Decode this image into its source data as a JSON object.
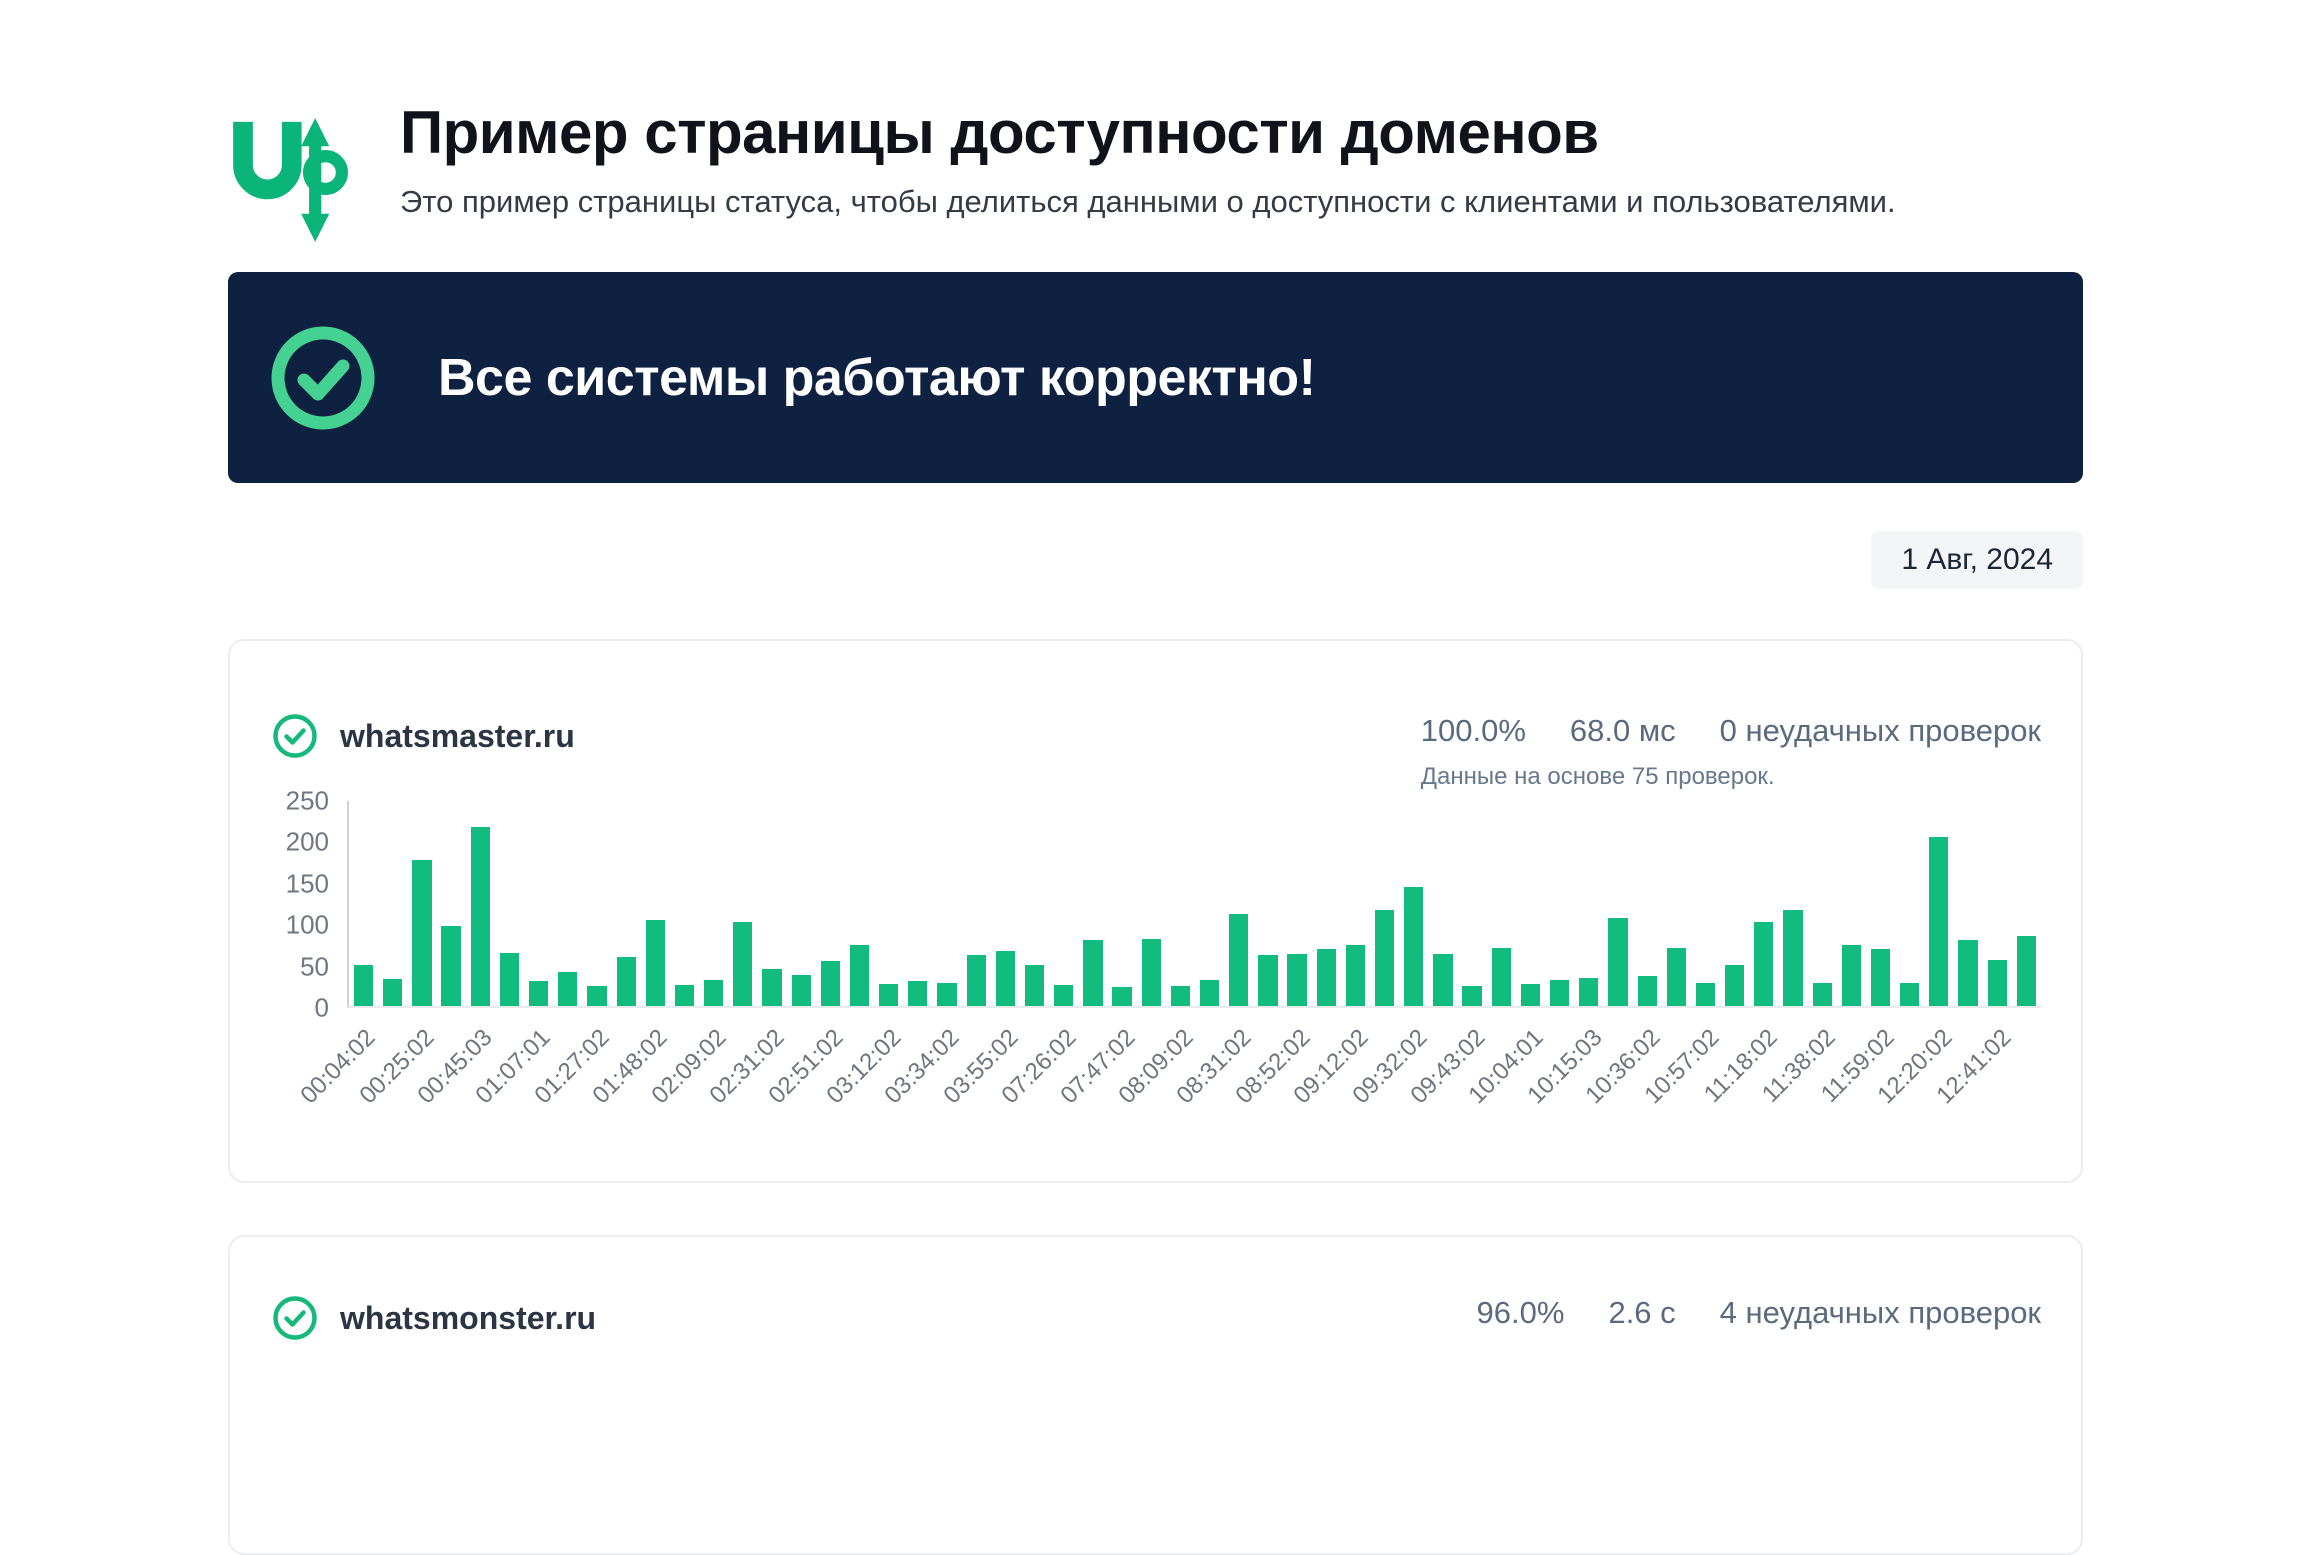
{
  "header": {
    "logo_text": "up",
    "title": "Пример страницы доступности доменов",
    "subtitle": "Это пример страницы статуса, чтобы делиться данными о доступности с клиентами и пользователями."
  },
  "banner": {
    "text": "Все системы работают корректно!",
    "background": "#0e2140",
    "icon_color": "#45d192"
  },
  "date_badge": "1 Авг, 2024",
  "cards": [
    {
      "domain": "whatsmaster.ru",
      "uptime": "100.0%",
      "response_time": "68.0 мс",
      "failed_checks": "0 неудачных проверок",
      "basis_note": "Данные на основе 75 проверок."
    },
    {
      "domain": "whatsmonster.ru",
      "uptime": "96.0%",
      "response_time": "2.6 с",
      "failed_checks": "4 неудачных проверок"
    }
  ],
  "chart_data": {
    "type": "bar",
    "title": "",
    "xlabel": "",
    "ylabel": "",
    "ylim": [
      0,
      250
    ],
    "yticks": [
      0,
      50,
      100,
      150,
      200,
      250
    ],
    "grid": false,
    "legend": false,
    "bar_color": "#12bc7e",
    "label_every": 2,
    "x_labels": [
      "00:04:02",
      "00:25:02",
      "00:45:03",
      "01:07:01",
      "01:27:02",
      "01:48:02",
      "02:09:02",
      "02:31:02",
      "02:51:02",
      "03:12:02",
      "03:34:02",
      "03:55:02",
      "07:26:02",
      "07:47:02",
      "08:09:02",
      "08:31:02",
      "08:52:02",
      "09:12:02",
      "09:32:02",
      "09:43:02",
      "10:04:01",
      "10:15:03",
      "10:36:02",
      "10:57:02",
      "11:18:02",
      "11:38:02",
      "11:59:02",
      "12:20:02",
      "12:41:02"
    ],
    "values": [
      50,
      33,
      178,
      97,
      218,
      65,
      30,
      42,
      25,
      60,
      105,
      26,
      32,
      103,
      45,
      38,
      55,
      75,
      27,
      31,
      28,
      62,
      67,
      50,
      26,
      80,
      23,
      82,
      25,
      32,
      112,
      62,
      63,
      70,
      74,
      117,
      145,
      63,
      25,
      71,
      27,
      32,
      34,
      107,
      37,
      71,
      28,
      50,
      102,
      117,
      28,
      75,
      69,
      28,
      206,
      80,
      56,
      85
    ]
  }
}
